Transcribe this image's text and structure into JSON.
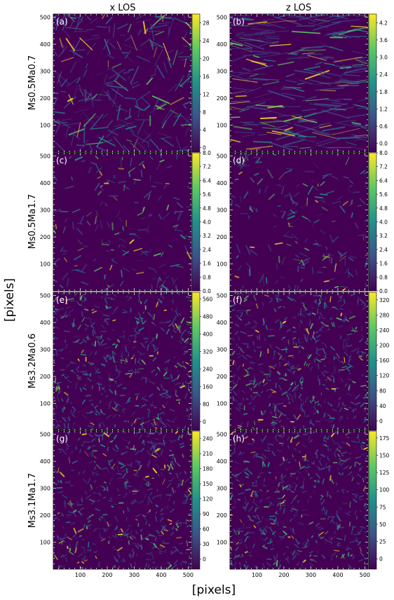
{
  "figure": {
    "column_titles": [
      "x LOS",
      "z LOS"
    ],
    "row_labels": [
      "Ms0.5Ma0.7",
      "Ms0.5Ma1.7",
      "Ms3.2Ma0.6",
      "Ms3.1Ma1.7"
    ],
    "xlabel": "[pixels]",
    "ylabel": "[pixels]",
    "colormap": [
      "#440154",
      "#3b528b",
      "#21918c",
      "#5ec962",
      "#fde725"
    ]
  },
  "chart_data": [
    {
      "type": "heatmap",
      "panel_label": "(a)",
      "column": "x LOS",
      "row": "Ms0.5Ma0.7",
      "xlim": [
        0,
        512
      ],
      "ylim": [
        0,
        512
      ],
      "x_ticks": [
        100,
        200,
        300,
        400,
        500
      ],
      "y_ticks": [
        100,
        200,
        300,
        400,
        500
      ],
      "colorbar_ticks": [
        0,
        4,
        8,
        12,
        16,
        20,
        24,
        28
      ],
      "colorbar_range": [
        -1,
        30
      ],
      "texture": "streaky"
    },
    {
      "type": "heatmap",
      "panel_label": "(b)",
      "column": "z LOS",
      "row": "Ms0.5Ma0.7",
      "xlim": [
        0,
        512
      ],
      "ylim": [
        0,
        512
      ],
      "x_ticks": [
        100,
        200,
        300,
        400,
        500
      ],
      "y_ticks": [
        100,
        200,
        300,
        400,
        500
      ],
      "colorbar_ticks": [
        0.0,
        0.6,
        1.2,
        1.8,
        2.4,
        3.0,
        3.6,
        4.2
      ],
      "colorbar_range": [
        -0.3,
        4.5
      ],
      "texture": "horizontal"
    },
    {
      "type": "heatmap",
      "panel_label": "(c)",
      "column": "x LOS",
      "row": "Ms0.5Ma1.7",
      "xlim": [
        0,
        512
      ],
      "ylim": [
        0,
        512
      ],
      "x_ticks": [
        100,
        200,
        300,
        400,
        500
      ],
      "y_ticks": [
        100,
        200,
        300,
        400,
        500
      ],
      "colorbar_ticks": [
        0.0,
        0.8,
        1.6,
        2.4,
        3.2,
        4.0,
        4.8,
        5.6,
        6.4,
        7.2,
        8.0
      ],
      "colorbar_range": [
        0,
        8
      ],
      "texture": "blobby"
    },
    {
      "type": "heatmap",
      "panel_label": "(d)",
      "column": "z LOS",
      "row": "Ms0.5Ma1.7",
      "xlim": [
        0,
        512
      ],
      "ylim": [
        0,
        512
      ],
      "x_ticks": [
        100,
        200,
        300,
        400,
        500
      ],
      "y_ticks": [
        100,
        200,
        300,
        400,
        500
      ],
      "colorbar_ticks": [
        0.0,
        0.8,
        1.6,
        2.4,
        3.2,
        4.0,
        4.8,
        5.6,
        6.4,
        7.2,
        8.0
      ],
      "colorbar_range": [
        0,
        8
      ],
      "texture": "blobby"
    },
    {
      "type": "heatmap",
      "panel_label": "(e)",
      "column": "x LOS",
      "row": "Ms3.2Ma0.6",
      "xlim": [
        0,
        512
      ],
      "ylim": [
        0,
        512
      ],
      "x_ticks": [
        100,
        200,
        300,
        400,
        500
      ],
      "y_ticks": [
        100,
        200,
        300,
        400,
        500
      ],
      "colorbar_ticks": [
        0,
        80,
        160,
        240,
        320,
        400,
        480,
        560
      ],
      "colorbar_range": [
        -40,
        590
      ],
      "texture": "noisy"
    },
    {
      "type": "heatmap",
      "panel_label": "(f)",
      "column": "z LOS",
      "row": "Ms3.2Ma0.6",
      "xlim": [
        0,
        512
      ],
      "ylim": [
        0,
        512
      ],
      "x_ticks": [
        100,
        200,
        300,
        400,
        500
      ],
      "y_ticks": [
        100,
        200,
        300,
        400,
        500
      ],
      "colorbar_ticks": [
        0,
        40,
        80,
        120,
        160,
        200,
        240,
        280,
        320
      ],
      "colorbar_range": [
        -25,
        340
      ],
      "texture": "noisy"
    },
    {
      "type": "heatmap",
      "panel_label": "(g)",
      "column": "x LOS",
      "row": "Ms3.1Ma1.7",
      "xlim": [
        0,
        512
      ],
      "ylim": [
        0,
        512
      ],
      "x_ticks": [
        100,
        200,
        300,
        400,
        500
      ],
      "y_ticks": [
        100,
        200,
        300,
        400,
        500
      ],
      "colorbar_ticks": [
        0,
        30,
        60,
        90,
        120,
        150,
        180,
        210,
        240
      ],
      "colorbar_range": [
        -20,
        255
      ],
      "texture": "noisy"
    },
    {
      "type": "heatmap",
      "panel_label": "(h)",
      "column": "z LOS",
      "row": "Ms3.1Ma1.7",
      "xlim": [
        0,
        512
      ],
      "ylim": [
        0,
        512
      ],
      "x_ticks": [
        100,
        200,
        300,
        400,
        500
      ],
      "y_ticks": [
        100,
        200,
        300,
        400,
        500
      ],
      "colorbar_ticks": [
        0,
        25,
        50,
        75,
        100,
        125,
        150,
        175
      ],
      "colorbar_range": [
        -15,
        185
      ],
      "texture": "noisy"
    }
  ]
}
